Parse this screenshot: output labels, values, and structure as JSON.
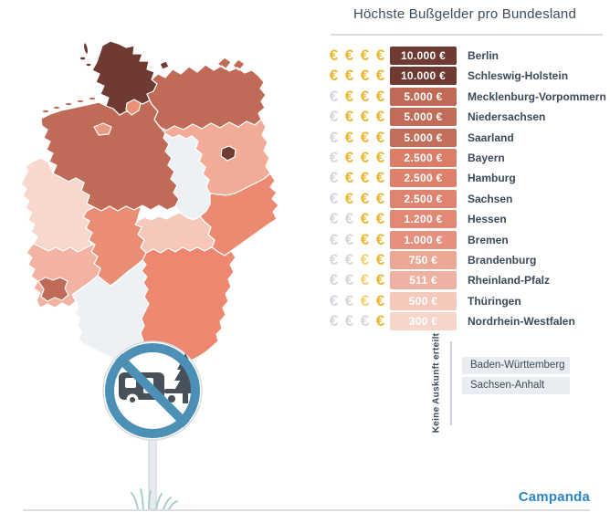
{
  "title": "Höchste Bußgelder pro Bundesland",
  "brand": "Campanda",
  "colors": {
    "euro_gold": "#eab830",
    "euro_pale": "#f1d06d",
    "euro_gray": "#d3d7de",
    "brand_blue": "#2b86c6",
    "sign_blue": "#4d90b5",
    "icon_dark": "#47505b",
    "pole_fill": "#e7eaee",
    "pole_edge": "#c9ced4",
    "grass_green": "#a9d0c6",
    "divider": "#d9dde2",
    "text_dark": "#3b4a59",
    "no_info_box_bg": "#e9edf2",
    "map_no_data": "#edf1f6",
    "circle_rim": "#d8dce0",
    "white": "#ffffff"
  },
  "fines": {
    "rows": [
      {
        "state": "Berlin",
        "amount": "10.000 €",
        "value": 10000,
        "euros": [
          "gold",
          "gold",
          "gold",
          "gold"
        ],
        "color": "#6e3a32"
      },
      {
        "state": "Schleswig-Holstein",
        "amount": "10.000 €",
        "value": 10000,
        "euros": [
          "gold",
          "gold",
          "gold",
          "gold"
        ],
        "color": "#6e3a32"
      },
      {
        "state": "Mecklenburg-Vorpommern",
        "amount": "5.000 €",
        "value": 5000,
        "euros": [
          "gray",
          "gold",
          "gold",
          "gold"
        ],
        "color": "#bf6a57"
      },
      {
        "state": "Niedersachsen",
        "amount": "5.000 €",
        "value": 5000,
        "euros": [
          "gray",
          "gold",
          "gold",
          "gold"
        ],
        "color": "#c06c59"
      },
      {
        "state": "Saarland",
        "amount": "5.000 €",
        "value": 5000,
        "euros": [
          "gray",
          "gold",
          "gold",
          "gold"
        ],
        "color": "#c16e5b"
      },
      {
        "state": "Bayern",
        "amount": "2.500 €",
        "value": 2500,
        "euros": [
          "gray",
          "gold",
          "gold",
          "gold"
        ],
        "color": "#db7e68"
      },
      {
        "state": "Hamburg",
        "amount": "2.500 €",
        "value": 2500,
        "euros": [
          "gray",
          "gold",
          "gold",
          "gold"
        ],
        "color": "#dd816c"
      },
      {
        "state": "Sachsen",
        "amount": "2.500 €",
        "value": 2500,
        "euros": [
          "gray",
          "gold",
          "gold",
          "gold"
        ],
        "color": "#df8470"
      },
      {
        "state": "Hessen",
        "amount": "1.200 €",
        "value": 1200,
        "euros": [
          "gray",
          "gray",
          "gold",
          "gold"
        ],
        "color": "#e28976"
      },
      {
        "state": "Bremen",
        "amount": "1.000 €",
        "value": 1000,
        "euros": [
          "gray",
          "gray",
          "gold",
          "gold"
        ],
        "color": "#e69180"
      },
      {
        "state": "Brandenburg",
        "amount": "750 €",
        "value": 750,
        "euros": [
          "gray",
          "gray",
          "pale",
          "gold"
        ],
        "color": "#eca795"
      },
      {
        "state": "Rheinland-Pfalz",
        "amount": "511 €",
        "value": 511,
        "euros": [
          "gray",
          "gray",
          "pale",
          "gold"
        ],
        "color": "#efb1a1"
      },
      {
        "state": "Thüringen",
        "amount": "500 €",
        "value": 500,
        "euros": [
          "gray",
          "gray",
          "pale",
          "gold"
        ],
        "color": "#f4c8bb"
      },
      {
        "state": "Nordrhein-Westfalen",
        "amount": "300 €",
        "value": 300,
        "euros": [
          "gray",
          "gray",
          "gray",
          "gold"
        ],
        "color": "#f7d5ca"
      }
    ]
  },
  "no_info": {
    "label": "Keine Auskunft erteilt",
    "states": [
      "Baden-Württemberg",
      "Sachsen-Anhalt"
    ]
  },
  "map": {
    "states": {
      "schleswig_holstein": {
        "name": "Schleswig-Holstein",
        "color": "#6e3a32"
      },
      "hamburg": {
        "name": "Hamburg",
        "color": "#ee8f78"
      },
      "mecklenburg_vorpommern": {
        "name": "Mecklenburg-Vorpommern",
        "color": "#c06b58"
      },
      "niedersachsen": {
        "name": "Niedersachsen",
        "color": "#c06b58"
      },
      "bremen": {
        "name": "Bremen",
        "color": "#eb9986"
      },
      "brandenburg": {
        "name": "Brandenburg",
        "color": "#f2ab97"
      },
      "berlin": {
        "name": "Berlin",
        "color": "#6e3a32"
      },
      "sachsen_anhalt": {
        "name": "Sachsen-Anhalt",
        "color": "#edf1f6"
      },
      "sachsen": {
        "name": "Sachsen",
        "color": "#ec8971"
      },
      "thueringen": {
        "name": "Thüringen",
        "color": "#f6c8ba"
      },
      "hessen": {
        "name": "Hessen",
        "color": "#e98d75"
      },
      "nordrhein_westfalen": {
        "name": "Nordrhein-Westfalen",
        "color": "#f8d7cc"
      },
      "rheinland_pfalz": {
        "name": "Rheinland-Pfalz",
        "color": "#f2b3a2"
      },
      "saarland": {
        "name": "Saarland",
        "color": "#c06b58"
      },
      "baden_wuerttemberg": {
        "name": "Baden-Württemberg",
        "color": "#edf1f6"
      },
      "bayern": {
        "name": "Bayern",
        "color": "#ee8770"
      }
    }
  },
  "sign": {
    "semantic": "no-camping-prohibition-sign"
  },
  "chart_data": {
    "type": "heatmap",
    "subtype": "choropleth-map-germany",
    "title": "Höchste Bußgelder pro Bundesland",
    "unit": "EUR",
    "categories": [
      "Berlin",
      "Schleswig-Holstein",
      "Mecklenburg-Vorpommern",
      "Niedersachsen",
      "Saarland",
      "Bayern",
      "Hamburg",
      "Sachsen",
      "Hessen",
      "Bremen",
      "Brandenburg",
      "Rheinland-Pfalz",
      "Thüringen",
      "Nordrhein-Westfalen",
      "Baden-Württemberg",
      "Sachsen-Anhalt"
    ],
    "values": [
      10000,
      10000,
      5000,
      5000,
      5000,
      2500,
      2500,
      2500,
      1200,
      1000,
      750,
      511,
      500,
      300,
      null,
      null
    ],
    "no_data_label": "Keine Auskunft erteilt",
    "legend_position": "right",
    "color_scale": {
      "max_color": "#6e3a32",
      "min_color": "#f8d7cc",
      "no_data_color": "#edf1f6"
    }
  }
}
